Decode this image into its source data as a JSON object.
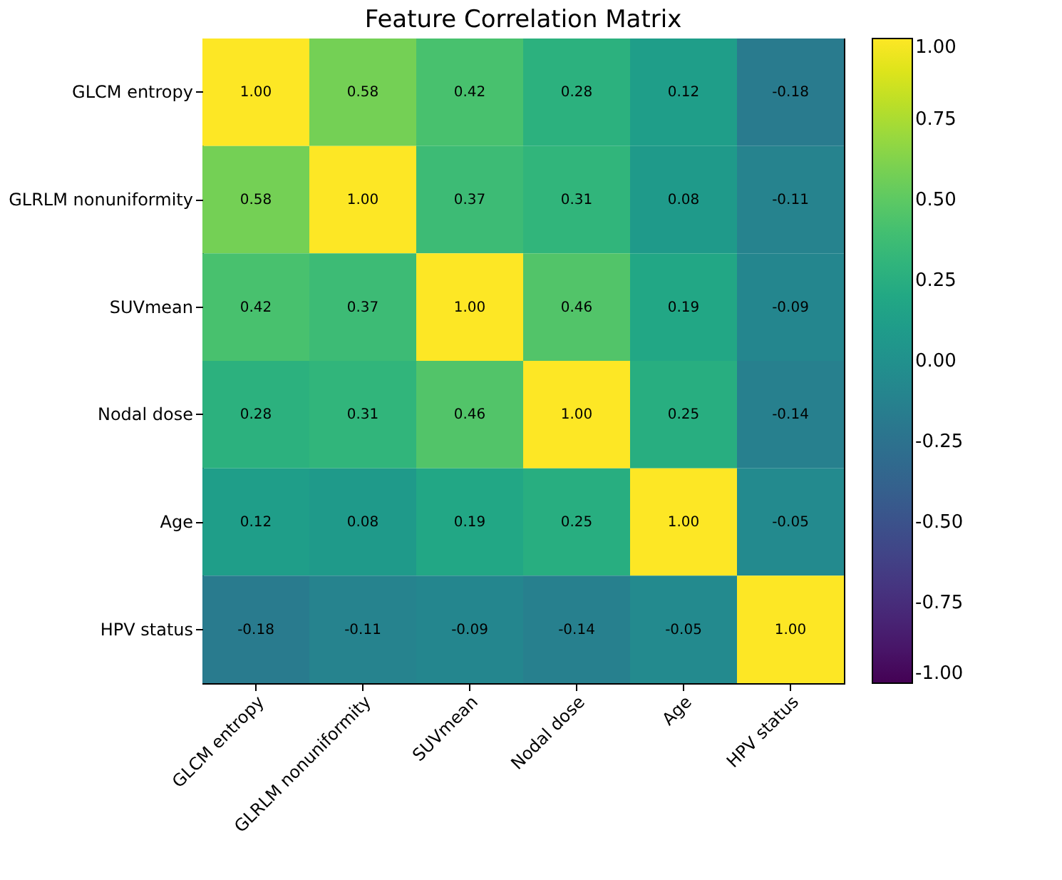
{
  "chart_data": {
    "type": "heatmap",
    "title": "Feature Correlation Matrix",
    "categories": [
      "GLCM entropy",
      "GLRLM nonuniformity",
      "SUVmean",
      "Nodal dose",
      "Age",
      "HPV status"
    ],
    "y_categories": [
      "GLCM entropy",
      "GLRLM nonuniformity",
      "SUVmean",
      "Nodal dose",
      "Age",
      "HPV status"
    ],
    "cells": [
      [
        1,
        0.58,
        0.42,
        0.28,
        0.12,
        -0.18
      ],
      [
        0.58,
        1,
        0.37,
        0.31,
        0.08,
        -0.11
      ],
      [
        0.42,
        0.37,
        1,
        0.46,
        0.19,
        -0.09
      ],
      [
        0.28,
        0.31,
        0.46,
        1,
        0.25,
        -0.14
      ],
      [
        0.12,
        0.08,
        0.19,
        0.25,
        1,
        -0.05
      ],
      [
        -0.18,
        -0.11,
        -0.09,
        -0.14,
        -0.05,
        1
      ]
    ],
    "cell_labels": [
      [
        "1.00",
        "0.58",
        "0.42",
        "0.28",
        "0.12",
        "-0.18"
      ],
      [
        "0.58",
        "1.00",
        "0.37",
        "0.31",
        "0.08",
        "-0.11"
      ],
      [
        "0.42",
        "0.37",
        "1.00",
        "0.46",
        "0.19",
        "-0.09"
      ],
      [
        "0.28",
        "0.31",
        "0.46",
        "1.00",
        "0.25",
        "-0.14"
      ],
      [
        "0.12",
        "0.08",
        "0.19",
        "0.25",
        "1.00",
        "-0.05"
      ],
      [
        "-0.18",
        "-0.11",
        "-0.09",
        "-0.14",
        "-0.05",
        "1.00"
      ]
    ],
    "clim": [
      -1,
      1
    ],
    "cticks": [
      {
        "value": -1,
        "label": "-1.00"
      },
      {
        "value": -0.75,
        "label": "-0.75"
      },
      {
        "value": -0.5,
        "label": "-0.50"
      },
      {
        "value": -0.25,
        "label": "-0.25"
      },
      {
        "value": 0,
        "label": "0.00"
      },
      {
        "value": 0.25,
        "label": "0.25"
      },
      {
        "value": 0.5,
        "label": "0.50"
      },
      {
        "value": 0.75,
        "label": "0.75"
      },
      {
        "value": 1,
        "label": "1.00"
      }
    ]
  }
}
